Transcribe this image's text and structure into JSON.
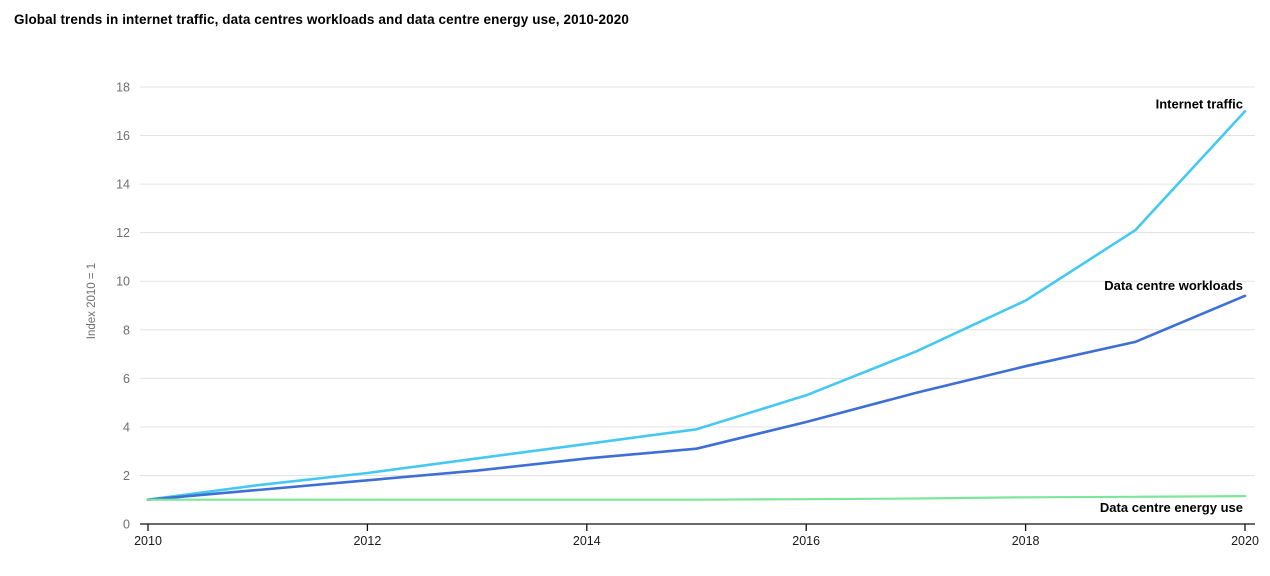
{
  "title": "Global trends in internet traffic, data centres workloads and data centre energy use, 2010-2020",
  "colors": {
    "internet_traffic": "#45C8F2",
    "data_centre_workloads": "#3D6FD5",
    "data_centre_energy_use": "#7DE69A",
    "gridline": "#E3E3E3",
    "axis": "#111111",
    "y_tick_text": "#6F6F6F",
    "x_tick_text": "#1A1A1A",
    "label_text": "#000000"
  },
  "chart_data": {
    "type": "line",
    "title": "Global trends in internet traffic, data centres workloads and data centre energy use, 2010-2020",
    "xlabel": "",
    "ylabel": "Index 2010 = 1",
    "x": [
      2010,
      2011,
      2012,
      2013,
      2014,
      2015,
      2016,
      2017,
      2018,
      2019,
      2020
    ],
    "xticks": [
      2010,
      2012,
      2014,
      2016,
      2018,
      2020
    ],
    "yticks": [
      0,
      2,
      4,
      6,
      8,
      10,
      12,
      14,
      16,
      18
    ],
    "xlim": [
      2010,
      2020
    ],
    "ylim": [
      0,
      18
    ],
    "grid": "horizontal",
    "legend_position": "end-of-line-labels",
    "series": [
      {
        "name": "Internet traffic",
        "color": "#45C8F2",
        "values": [
          1.0,
          1.6,
          2.1,
          2.7,
          3.3,
          3.9,
          5.3,
          7.1,
          9.2,
          12.1,
          17.0
        ]
      },
      {
        "name": "Data centre workloads",
        "color": "#3D6FD5",
        "values": [
          1.0,
          1.4,
          1.8,
          2.2,
          2.7,
          3.1,
          4.2,
          5.4,
          6.5,
          7.5,
          9.4
        ]
      },
      {
        "name": "Data centre energy use",
        "color": "#7DE69A",
        "values": [
          1.0,
          1.0,
          1.0,
          1.0,
          1.0,
          1.0,
          1.02,
          1.05,
          1.1,
          1.12,
          1.15
        ]
      }
    ]
  }
}
